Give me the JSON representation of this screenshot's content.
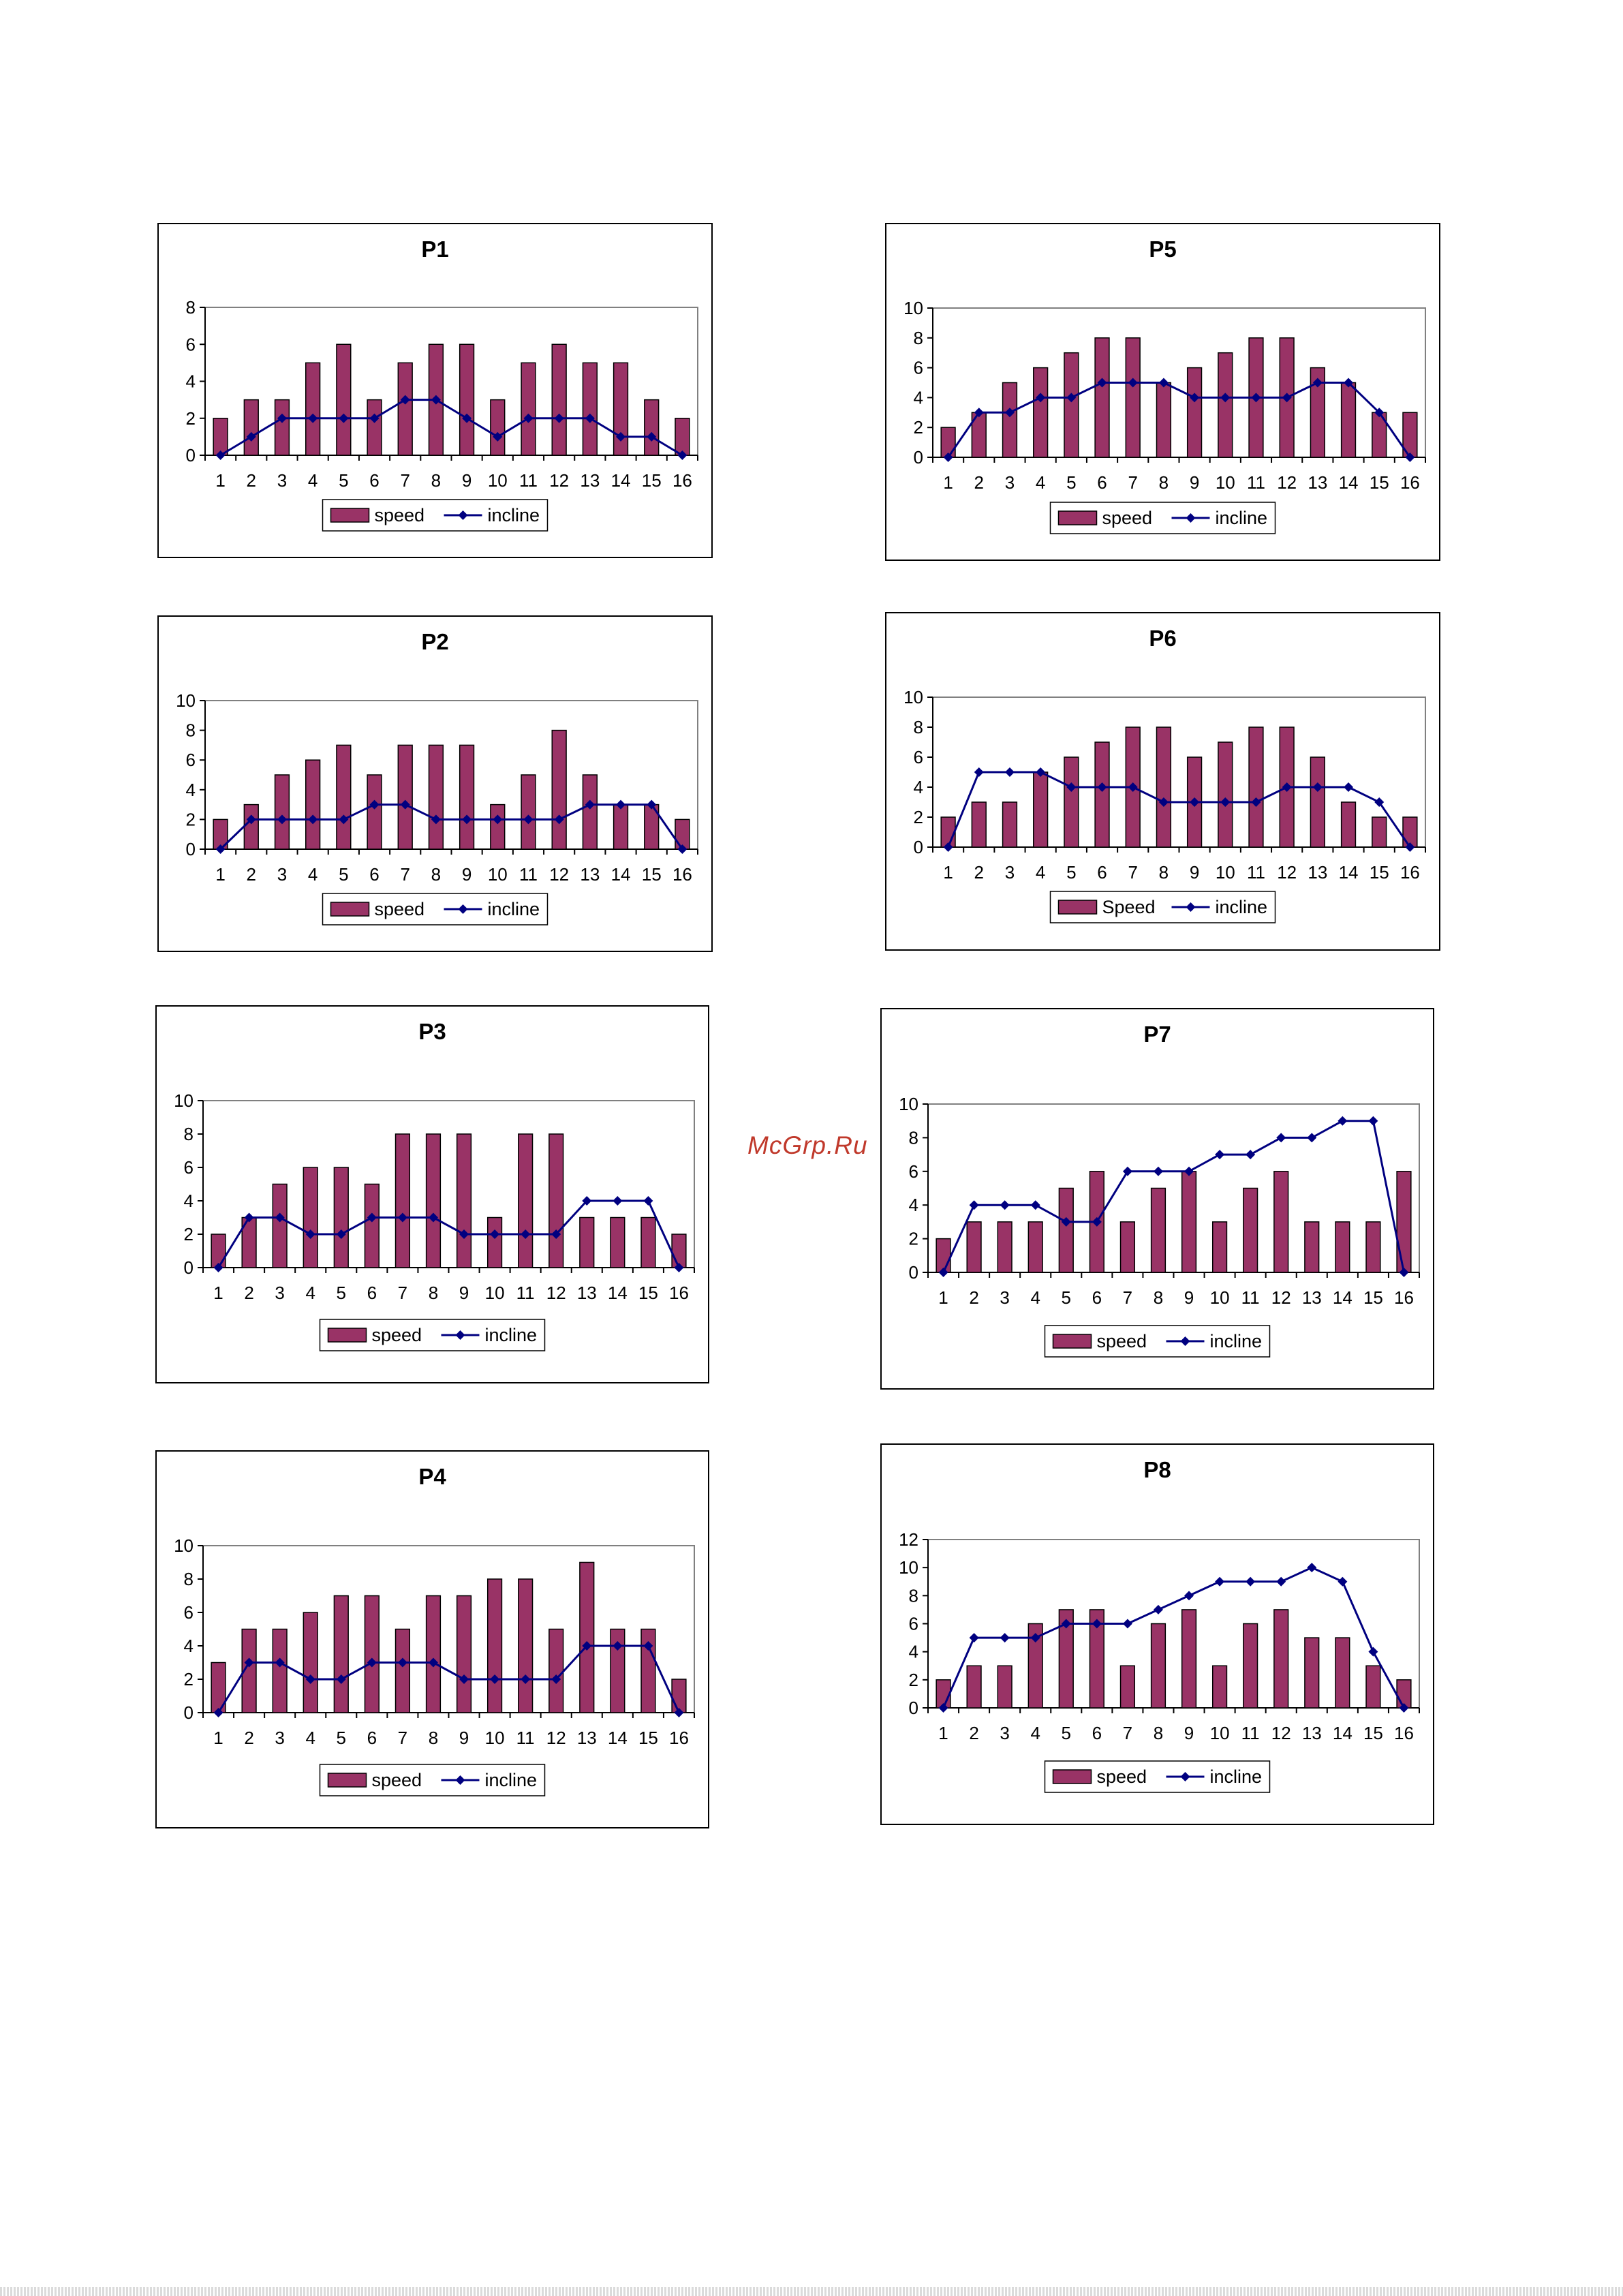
{
  "watermark": "McGrp.Ru",
  "colors": {
    "speed": "#993366",
    "incline": "#000080",
    "plot_border": "#808080"
  },
  "chart_data": [
    {
      "id": "P1",
      "type": "bar+line",
      "title": "P1",
      "ylim": [
        0,
        8
      ],
      "yticks": [
        0,
        2,
        4,
        6,
        8
      ],
      "categories": [
        "1",
        "2",
        "3",
        "4",
        "5",
        "6",
        "7",
        "8",
        "9",
        "10",
        "11",
        "12",
        "13",
        "14",
        "15",
        "16"
      ],
      "series": [
        {
          "name": "speed",
          "kind": "bar",
          "values": [
            2,
            3,
            3,
            5,
            6,
            3,
            5,
            6,
            6,
            3,
            5,
            6,
            5,
            5,
            3,
            2
          ]
        },
        {
          "name": "incline",
          "kind": "line",
          "values": [
            0,
            1,
            2,
            2,
            2,
            2,
            3,
            3,
            2,
            1,
            2,
            2,
            2,
            1,
            1,
            0
          ]
        }
      ]
    },
    {
      "id": "P2",
      "type": "bar+line",
      "title": "P2",
      "ylim": [
        0,
        10
      ],
      "yticks": [
        0,
        2,
        4,
        6,
        8,
        10
      ],
      "categories": [
        "1",
        "2",
        "3",
        "4",
        "5",
        "6",
        "7",
        "8",
        "9",
        "10",
        "11",
        "12",
        "13",
        "14",
        "15",
        "16"
      ],
      "series": [
        {
          "name": "speed",
          "kind": "bar",
          "values": [
            2,
            3,
            5,
            6,
            7,
            5,
            7,
            7,
            7,
            3,
            5,
            8,
            5,
            3,
            3,
            2
          ]
        },
        {
          "name": "incline",
          "kind": "line",
          "values": [
            0,
            2,
            2,
            2,
            2,
            3,
            3,
            2,
            2,
            2,
            2,
            2,
            3,
            3,
            3,
            0
          ]
        }
      ]
    },
    {
      "id": "P3",
      "type": "bar+line",
      "title": "P3",
      "ylim": [
        0,
        10
      ],
      "yticks": [
        0,
        2,
        4,
        6,
        8,
        10
      ],
      "categories": [
        "1",
        "2",
        "3",
        "4",
        "5",
        "6",
        "7",
        "8",
        "9",
        "10",
        "11",
        "12",
        "13",
        "14",
        "15",
        "16"
      ],
      "series": [
        {
          "name": "speed",
          "kind": "bar",
          "values": [
            2,
            3,
            5,
            6,
            6,
            5,
            8,
            8,
            8,
            3,
            8,
            8,
            3,
            3,
            3,
            2
          ]
        },
        {
          "name": "incline",
          "kind": "line",
          "values": [
            0,
            3,
            3,
            2,
            2,
            3,
            3,
            3,
            2,
            2,
            2,
            2,
            4,
            4,
            4,
            0
          ]
        }
      ]
    },
    {
      "id": "P4",
      "type": "bar+line",
      "title": "P4",
      "ylim": [
        0,
        10
      ],
      "yticks": [
        0,
        2,
        4,
        6,
        8,
        10
      ],
      "categories": [
        "1",
        "2",
        "3",
        "4",
        "5",
        "6",
        "7",
        "8",
        "9",
        "10",
        "11",
        "12",
        "13",
        "14",
        "15",
        "16"
      ],
      "series": [
        {
          "name": "speed",
          "kind": "bar",
          "values": [
            3,
            5,
            5,
            6,
            7,
            7,
            5,
            7,
            7,
            8,
            8,
            5,
            9,
            5,
            5,
            2
          ]
        },
        {
          "name": "incline",
          "kind": "line",
          "values": [
            0,
            3,
            3,
            2,
            2,
            3,
            3,
            3,
            2,
            2,
            2,
            2,
            4,
            4,
            4,
            0
          ]
        }
      ]
    },
    {
      "id": "P5",
      "type": "bar+line",
      "title": "P5",
      "ylim": [
        0,
        10
      ],
      "yticks": [
        0,
        2,
        4,
        6,
        8,
        10
      ],
      "categories": [
        "1",
        "2",
        "3",
        "4",
        "5",
        "6",
        "7",
        "8",
        "9",
        "10",
        "11",
        "12",
        "13",
        "14",
        "15",
        "16"
      ],
      "series": [
        {
          "name": "speed",
          "kind": "bar",
          "values": [
            2,
            3,
            5,
            6,
            7,
            8,
            8,
            5,
            6,
            7,
            8,
            8,
            6,
            5,
            3,
            3
          ]
        },
        {
          "name": "incline",
          "kind": "line",
          "values": [
            0,
            3,
            3,
            4,
            4,
            5,
            5,
            5,
            4,
            4,
            4,
            4,
            5,
            5,
            3,
            0
          ]
        }
      ]
    },
    {
      "id": "P6",
      "type": "bar+line",
      "title": "P6",
      "ylim": [
        0,
        10
      ],
      "yticks": [
        0,
        2,
        4,
        6,
        8,
        10
      ],
      "categories": [
        "1",
        "2",
        "3",
        "4",
        "5",
        "6",
        "7",
        "8",
        "9",
        "10",
        "11",
        "12",
        "13",
        "14",
        "15",
        "16"
      ],
      "series": [
        {
          "name": "Speed",
          "kind": "bar",
          "values": [
            2,
            3,
            3,
            5,
            6,
            7,
            8,
            8,
            6,
            7,
            8,
            8,
            6,
            3,
            2,
            2
          ]
        },
        {
          "name": "incline",
          "kind": "line",
          "values": [
            0,
            5,
            5,
            5,
            4,
            4,
            4,
            3,
            3,
            3,
            3,
            4,
            4,
            4,
            3,
            0
          ]
        }
      ]
    },
    {
      "id": "P7",
      "type": "bar+line",
      "title": "P7",
      "ylim": [
        0,
        10
      ],
      "yticks": [
        0,
        2,
        4,
        6,
        8,
        10
      ],
      "categories": [
        "1",
        "2",
        "3",
        "4",
        "5",
        "6",
        "7",
        "8",
        "9",
        "10",
        "11",
        "12",
        "13",
        "14",
        "15",
        "16"
      ],
      "series": [
        {
          "name": "speed",
          "kind": "bar",
          "values": [
            2,
            3,
            3,
            3,
            5,
            6,
            3,
            5,
            6,
            3,
            5,
            6,
            3,
            3,
            3,
            6
          ]
        },
        {
          "name": "incline",
          "kind": "line",
          "values": [
            0,
            4,
            4,
            4,
            3,
            3,
            6,
            6,
            6,
            7,
            7,
            8,
            8,
            9,
            9,
            0
          ]
        }
      ]
    },
    {
      "id": "P8",
      "type": "bar+line",
      "title": "P8",
      "ylim": [
        0,
        12
      ],
      "yticks": [
        0,
        2,
        4,
        6,
        8,
        10,
        12
      ],
      "categories": [
        "1",
        "2",
        "3",
        "4",
        "5",
        "6",
        "7",
        "8",
        "9",
        "10",
        "11",
        "12",
        "13",
        "14",
        "15",
        "16"
      ],
      "series": [
        {
          "name": "speed",
          "kind": "bar",
          "values": [
            2,
            3,
            3,
            6,
            7,
            7,
            3,
            6,
            7,
            3,
            6,
            7,
            5,
            5,
            3,
            2
          ]
        },
        {
          "name": "incline",
          "kind": "line",
          "values": [
            0,
            5,
            5,
            5,
            6,
            6,
            6,
            7,
            8,
            9,
            9,
            9,
            10,
            9,
            4,
            0
          ]
        }
      ]
    }
  ]
}
